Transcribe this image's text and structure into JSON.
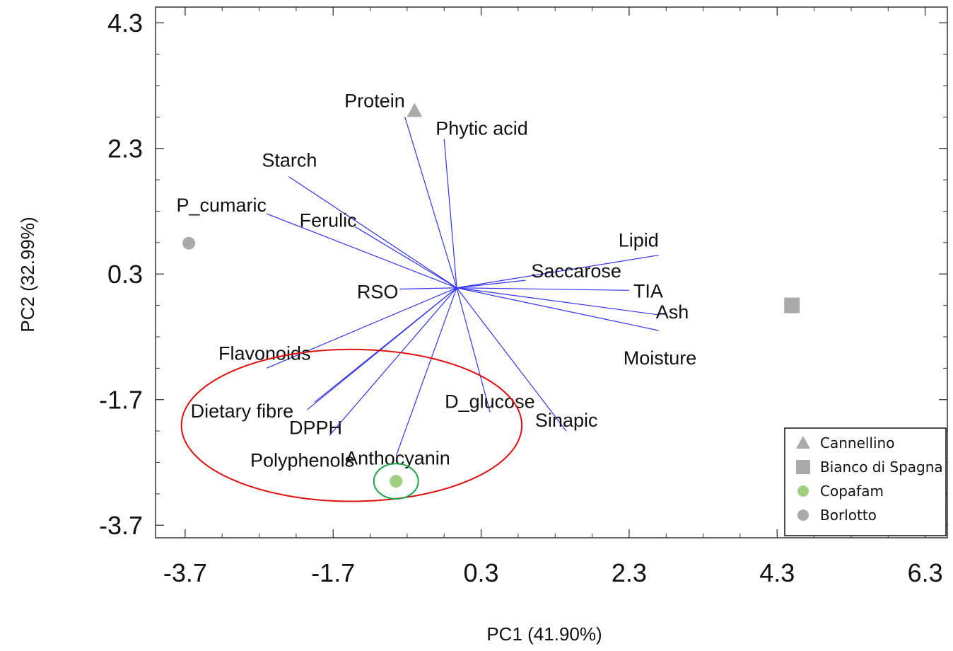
{
  "chart_data": {
    "type": "scatter",
    "xlabel": "PC1 (41.90%)",
    "ylabel": "PC2 (32.99%)",
    "xlim": [
      -4.1,
      6.6
    ],
    "ylim": [
      -3.9,
      4.55
    ],
    "x_ticks": [
      "-3.7",
      "-1.7",
      "0.3",
      "2.3",
      "4.3",
      "6.3"
    ],
    "y_ticks": [
      "4.3",
      "2.3",
      "0.3",
      "-1.7",
      "-3.7"
    ],
    "grid": false,
    "legend_position": "bottom-right",
    "loadings_origin": [
      -0.03,
      0.08
    ],
    "loadings": [
      {
        "name": "Protein",
        "x": -0.73,
        "y": 2.8
      },
      {
        "name": "Phytic acid",
        "x": -0.2,
        "y": 2.45
      },
      {
        "name": "Starch",
        "x": -2.3,
        "y": 1.85
      },
      {
        "name": "P_cumaric",
        "x": -2.6,
        "y": 1.26
      },
      {
        "name": "Ferulic",
        "x": -1.4,
        "y": 1.05
      },
      {
        "name": "Lipid",
        "x": 2.7,
        "y": 0.6
      },
      {
        "name": "Saccarose",
        "x": 0.9,
        "y": 0.2
      },
      {
        "name": "TIA",
        "x": 2.3,
        "y": 0.04
      },
      {
        "name": "Ash",
        "x": 2.7,
        "y": -0.35
      },
      {
        "name": "Moisture",
        "x": 2.7,
        "y": -0.6
      },
      {
        "name": "RSO",
        "x": -0.8,
        "y": 0.06
      },
      {
        "name": "Flavonoids",
        "x": -2.6,
        "y": -1.2
      },
      {
        "name": "Dietary fibre",
        "x": -2.05,
        "y": -1.86
      },
      {
        "name": "DPPH",
        "x": -1.95,
        "y": -1.74
      },
      {
        "name": "Polyphenols",
        "x": -1.75,
        "y": -2.27
      },
      {
        "name": "Anthocyanin",
        "x": -0.85,
        "y": -2.6
      },
      {
        "name": "D_glucose",
        "x": 0.42,
        "y": -1.9
      },
      {
        "name": "Sinapic",
        "x": 1.45,
        "y": -2.2
      }
    ],
    "series": [
      {
        "name": "Cannellino",
        "marker": "triangle",
        "color": "#aaaaaa",
        "x": -0.6,
        "y": 2.9
      },
      {
        "name": "Bianco di Spagna",
        "marker": "square",
        "color": "#aaaaaa",
        "x": 4.5,
        "y": -0.2
      },
      {
        "name": "Copafam",
        "marker": "circle",
        "color": "#9ed07f",
        "x": -0.85,
        "y": -3.0
      },
      {
        "name": "Borlotto",
        "marker": "circle",
        "color": "#aaaaaa",
        "x": -3.65,
        "y": 0.79
      }
    ],
    "annotations": [
      {
        "shape": "ellipse",
        "color": "#e01010",
        "cx": -1.45,
        "cy": -2.11,
        "rx": 2.3,
        "ry": 1.21
      },
      {
        "shape": "ellipse",
        "color": "#1ea34a",
        "cx": -0.85,
        "cy": -3.0,
        "rx": 0.3,
        "ry": 0.28
      }
    ],
    "colors": {
      "loading_line": "#3333ee",
      "axis": "#333333"
    }
  }
}
